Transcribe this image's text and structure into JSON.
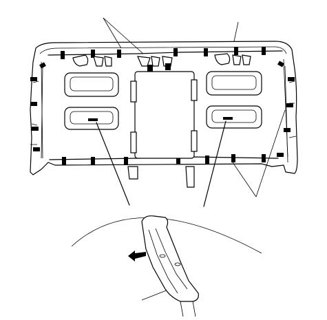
{
  "figure": {
    "background": "#ffffff",
    "stroke": "#000000",
    "callouts": [
      {
        "id": "leader-clips-top"
      },
      {
        "id": "leader-harness-top"
      },
      {
        "id": "leader-lamp-left"
      },
      {
        "id": "leader-lamp-right"
      },
      {
        "id": "leader-clips-right"
      },
      {
        "id": "leader-detail-tab"
      }
    ],
    "components": [
      "headliner-panel",
      "sunvisor-holder-left",
      "sunvisor-holder-right",
      "map-lamp-left",
      "map-lamp-right",
      "center-console-pad",
      "wire-harness",
      "detail-magnifier",
      "push-direction-arrow"
    ]
  }
}
